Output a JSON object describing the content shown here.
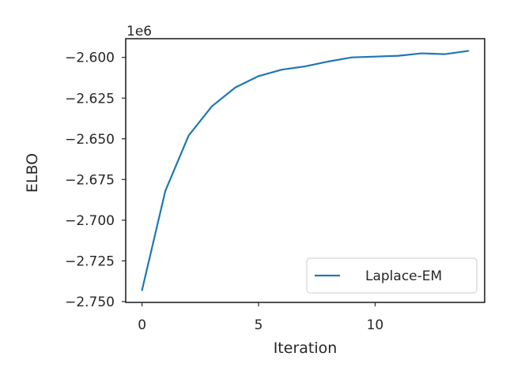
{
  "chart_data": {
    "type": "line",
    "xlabel": "Iteration",
    "ylabel": "ELBO",
    "offset_label": "1e6",
    "xlim": [
      -0.7,
      14.7
    ],
    "ylim": [
      -2.7505,
      -2.5885
    ],
    "xticks": [
      0,
      5,
      10
    ],
    "xtick_labels": [
      "0",
      "5",
      "10"
    ],
    "yticks": [
      -2.75,
      -2.725,
      -2.7,
      -2.675,
      -2.65,
      -2.625,
      -2.6
    ],
    "ytick_labels": [
      "−2.750",
      "−2.725",
      "−2.700",
      "−2.675",
      "−2.650",
      "−2.625",
      "−2.600"
    ],
    "grid": false,
    "legend_position": "lower-right",
    "series": [
      {
        "name": "Laplace-EM",
        "color": "#1f77b4",
        "x": [
          0,
          1,
          2,
          3,
          4,
          5,
          6,
          7,
          8,
          9,
          10,
          11,
          12,
          13,
          14
        ],
        "values": [
          -2.743,
          -2.682,
          -2.648,
          -2.63,
          -2.6185,
          -2.6115,
          -2.6075,
          -2.6055,
          -2.6025,
          -2.6,
          -2.5995,
          -2.599,
          -2.5975,
          -2.598,
          -2.596
        ]
      }
    ]
  }
}
